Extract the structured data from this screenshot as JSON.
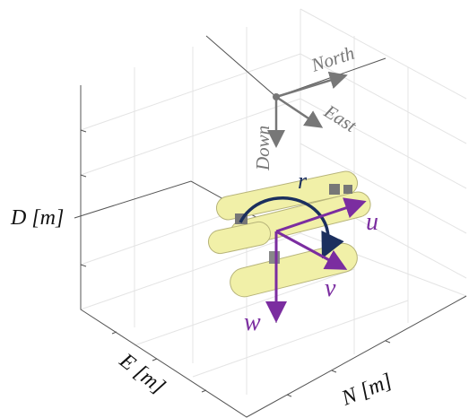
{
  "axes": {
    "d_label": "D [m]",
    "e_label": "E [m]",
    "n_label": "N [m]"
  },
  "frame": {
    "north": "North",
    "east": "East",
    "down": "Down"
  },
  "vehicle": {
    "r": "r",
    "u": "u",
    "v": "v",
    "w": "w"
  }
}
